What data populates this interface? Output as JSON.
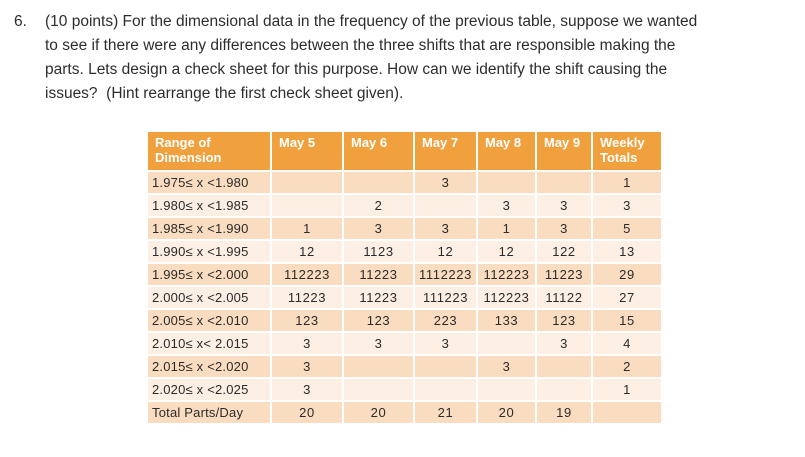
{
  "question": {
    "number": "6.",
    "lines": [
      "(10 points) For the dimensional data in the frequency of the previous table, suppose we wanted",
      "to see if there were any differences between the three shifts that are responsible making the",
      "parts. Lets design a check sheet for this purpose. How can we identify the shift causing the",
      "issues?  (Hint rearrange the first check sheet given)."
    ]
  },
  "table": {
    "headers": [
      "Range of Dimension",
      "May 5",
      "May 6",
      "May 7",
      "May 8",
      "May 9",
      "Weekly Totals"
    ],
    "rows": [
      {
        "label": "1.975≤ x <1.980",
        "values": [
          "",
          "",
          "3",
          "",
          ""
        ],
        "total": "1"
      },
      {
        "label": "1.980≤ x <1.985",
        "values": [
          "",
          "2",
          "",
          "3",
          "3"
        ],
        "total": "3"
      },
      {
        "label": "1.985≤ x <1.990",
        "values": [
          "1",
          "3",
          "3",
          "1",
          "3"
        ],
        "total": "5"
      },
      {
        "label": "1.990≤ x <1.995",
        "values": [
          "12",
          "1123",
          "12",
          "12",
          "122"
        ],
        "total": "13"
      },
      {
        "label": "1.995≤ x <2.000",
        "values": [
          "112223",
          "11223",
          "1112223",
          "112223",
          "11223"
        ],
        "total": "29"
      },
      {
        "label": "2.000≤ x <2.005",
        "values": [
          "11223",
          "11223",
          "111223",
          "112223",
          "11122"
        ],
        "total": "27"
      },
      {
        "label": "2.005≤ x <2.010",
        "values": [
          "123",
          "123",
          "223",
          "133",
          "123"
        ],
        "total": "15"
      },
      {
        "label": "2.010≤ x< 2.015",
        "values": [
          "3",
          "3",
          "3",
          "",
          "3"
        ],
        "total": "4"
      },
      {
        "label": "2.015≤ x <2.020",
        "values": [
          "3",
          "",
          "",
          "3",
          ""
        ],
        "total": "2"
      },
      {
        "label": "2.020≤ x <2.025",
        "values": [
          "3",
          "",
          "",
          "",
          ""
        ],
        "total": "1"
      },
      {
        "label": "Total Parts/Day",
        "values": [
          "20",
          "20",
          "21",
          "20",
          "19"
        ],
        "total": ""
      }
    ]
  },
  "colors": {
    "header_bg": "#F0A13D",
    "header_text": "#FFFFFF",
    "row_dark": "#FADCC0",
    "row_light": "#FDEFE4",
    "body_text": "#2B2B2B"
  }
}
